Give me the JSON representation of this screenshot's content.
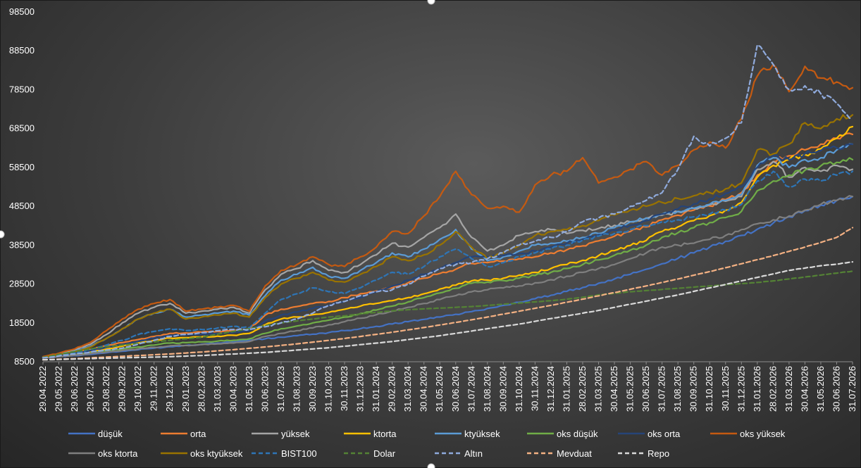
{
  "chart_data": {
    "type": "line",
    "title": "",
    "xlabel": "",
    "ylabel": "",
    "ylim": [
      8500,
      98500
    ],
    "y_ticks": [
      "8500",
      "18500",
      "28500",
      "38500",
      "48500",
      "58500",
      "68500",
      "78500",
      "88500",
      "98500"
    ],
    "x_ticks": [
      "29.04.2022",
      "29.05.2022",
      "29.06.2022",
      "29.07.2022",
      "29.08.2022",
      "29.09.2022",
      "29.10.2022",
      "29.11.2022",
      "29.12.2022",
      "29.01.2023",
      "28.02.2023",
      "31.03.2023",
      "30.04.2023",
      "31.05.2023",
      "30.06.2023",
      "31.07.2023",
      "31.08.2023",
      "30.09.2023",
      "31.10.2023",
      "30.11.2023",
      "31.12.2023",
      "31.01.2024",
      "29.02.2024",
      "31.03.2024",
      "30.04.2024",
      "31.05.2024",
      "30.06.2024",
      "31.07.2024",
      "31.08.2024",
      "30.09.2024",
      "31.10.2024",
      "30.11.2024",
      "31.12.2024",
      "31.01.2025",
      "28.02.2025",
      "31.03.2025",
      "30.04.2025",
      "31.05.2025",
      "30.06.2025",
      "31.07.2025",
      "31.08.2025",
      "30.09.2025",
      "31.10.2025",
      "30.11.2025",
      "31.12.2025",
      "31.01.2026",
      "28.02.2026",
      "31.03.2026",
      "30.04.2026",
      "31.05.2026",
      "30.06.2026",
      "31.07.2026"
    ],
    "grid": false,
    "legend_position": "bottom",
    "series": [
      {
        "name": "düşük",
        "color": "#4472c4",
        "dash": false,
        "values": [
          9500,
          9800,
          10100,
          10400,
          10800,
          11200,
          11600,
          12000,
          12400,
          12700,
          13000,
          13300,
          13600,
          14000,
          14400,
          14800,
          15200,
          15600,
          16000,
          16500,
          17000,
          17600,
          18200,
          18800,
          19400,
          20000,
          20700,
          21400,
          22200,
          23000,
          23800,
          24700,
          25600,
          26600,
          27600,
          28700,
          29800,
          31000,
          32300,
          33700,
          35100,
          36500,
          38000,
          39500,
          41000,
          42600,
          44200,
          45800,
          47400,
          48800,
          50000,
          51000
        ]
      },
      {
        "name": "orta",
        "color": "#ed7d31",
        "dash": false,
        "values": [
          9600,
          10200,
          10900,
          11700,
          12600,
          13400,
          14200,
          15000,
          15800,
          15900,
          16100,
          16300,
          16500,
          17000,
          20500,
          22000,
          22700,
          23500,
          24000,
          25000,
          26000,
          26700,
          27500,
          28800,
          30000,
          31200,
          32300,
          33800,
          34000,
          34400,
          35000,
          35500,
          36500,
          37300,
          38300,
          39600,
          40800,
          42000,
          43200,
          45000,
          46200,
          47500,
          48600,
          50200,
          52000,
          56500,
          60000,
          61500,
          63000,
          64500,
          66000,
          67000
        ]
      },
      {
        "name": "yüksek",
        "color": "#a5a5a5",
        "dash": false,
        "values": [
          9700,
          10500,
          11500,
          13000,
          15500,
          18500,
          21000,
          22500,
          23500,
          21000,
          21500,
          22000,
          22500,
          21000,
          27000,
          31000,
          32500,
          34500,
          32000,
          31500,
          33500,
          36000,
          39000,
          38000,
          40500,
          43000,
          46500,
          40500,
          37000,
          38500,
          41000,
          42000,
          42500,
          41500,
          42300,
          42800,
          43600,
          44500,
          45400,
          46200,
          47100,
          48000,
          48900,
          49800,
          51000,
          58000,
          60000,
          56000,
          58500,
          57500,
          59000,
          58000
        ]
      },
      {
        "name": "ktorta",
        "color": "#ffc000",
        "dash": false,
        "values": [
          9500,
          9900,
          10400,
          11000,
          11800,
          12500,
          13300,
          14000,
          14600,
          14700,
          14900,
          15100,
          15300,
          15800,
          18000,
          19500,
          20000,
          20600,
          21200,
          22000,
          22800,
          23500,
          24200,
          25000,
          26000,
          27200,
          28200,
          29300,
          29500,
          30000,
          30800,
          31500,
          32500,
          33500,
          34600,
          35800,
          37100,
          38400,
          39700,
          42000,
          43200,
          44800,
          46100,
          47500,
          49500,
          56000,
          59000,
          60500,
          61800,
          63300,
          66000,
          69000
        ]
      },
      {
        "name": "ktyüksek",
        "color": "#5b9bd5",
        "dash": false,
        "values": [
          9700,
          10400,
          11200,
          12500,
          14500,
          17000,
          19500,
          21000,
          22000,
          20000,
          20500,
          21000,
          21500,
          20500,
          25500,
          29500,
          31000,
          32800,
          30500,
          30000,
          32000,
          34000,
          36500,
          35500,
          37500,
          40000,
          42500,
          37500,
          34500,
          35500,
          37000,
          38500,
          39000,
          39500,
          40500,
          41500,
          43000,
          44500,
          45500,
          46500,
          47200,
          48000,
          49000,
          50000,
          51500,
          59000,
          61000,
          58500,
          60500,
          61000,
          63000,
          64500
        ]
      },
      {
        "name": "oks düşük",
        "color": "#70ad47",
        "dash": false,
        "values": [
          9500,
          9900,
          10300,
          10800,
          11300,
          11800,
          12300,
          12800,
          13300,
          13400,
          13600,
          13800,
          14000,
          14400,
          15800,
          17000,
          17700,
          18500,
          19200,
          20000,
          20900,
          21800,
          22800,
          23900,
          25000,
          26200,
          27400,
          28700,
          29000,
          29400,
          30000,
          30700,
          31500,
          32500,
          33500,
          34700,
          35900,
          37200,
          38500,
          40500,
          41700,
          43000,
          44300,
          45600,
          47200,
          52500,
          55000,
          56500,
          57800,
          58900,
          59800,
          60500
        ]
      },
      {
        "name": "oks orta",
        "color": "#264478",
        "dash": false,
        "values": [
          9600,
          10100,
          10700,
          11400,
          12200,
          13000,
          13800,
          14600,
          15300,
          15400,
          15600,
          15800,
          16000,
          16500,
          19000,
          20500,
          21300,
          22200,
          23000,
          24000,
          25000,
          26500,
          28000,
          29500,
          31000,
          32500,
          34000,
          35500,
          35500,
          35800,
          36300,
          37000,
          38000,
          39000,
          40000,
          41200,
          42400,
          43600,
          44800,
          46500,
          47800,
          49100,
          50400,
          51800,
          53500,
          58500,
          61500,
          60500,
          62000,
          62800,
          63500,
          64500
        ]
      },
      {
        "name": "oks yüksek",
        "color": "#c55a11",
        "dash": false,
        "values": [
          9800,
          10700,
          11800,
          13500,
          16500,
          19500,
          22000,
          23500,
          24500,
          21500,
          22000,
          22500,
          23000,
          21500,
          28000,
          32000,
          33500,
          35500,
          33500,
          33000,
          35500,
          38000,
          42000,
          41500,
          46000,
          51000,
          57500,
          51500,
          48000,
          48500,
          47000,
          54000,
          56500,
          57500,
          61000,
          54500,
          56000,
          58000,
          60000,
          56500,
          59000,
          63000,
          65000,
          63500,
          71000,
          82000,
          85000,
          78000,
          84500,
          81500,
          80500,
          79000
        ]
      },
      {
        "name": "oks ktorta",
        "color": "#7f7f7f",
        "dash": false,
        "values": [
          9500,
          9800,
          10200,
          10600,
          11000,
          11400,
          11800,
          12200,
          12600,
          12700,
          12900,
          13100,
          13300,
          13700,
          15000,
          15800,
          16500,
          17200,
          18000,
          18800,
          19700,
          20600,
          21500,
          22500,
          23500,
          24500,
          25500,
          26500,
          27000,
          27500,
          28000,
          28800,
          29600,
          30500,
          31500,
          32500,
          33500,
          35000,
          36500,
          38000,
          38500,
          39000,
          40000,
          41000,
          42500,
          44000,
          45000,
          46000,
          47500,
          49000,
          50000,
          51000
        ]
      },
      {
        "name": "oks ktyüksek",
        "color": "#997300",
        "dash": false,
        "values": [
          9700,
          10300,
          11100,
          12300,
          14500,
          17000,
          19500,
          21000,
          22000,
          19500,
          20000,
          20500,
          21000,
          20000,
          25000,
          28500,
          30000,
          31500,
          29500,
          29000,
          31000,
          33000,
          35500,
          34500,
          36000,
          38500,
          42000,
          38000,
          35000,
          36500,
          38500,
          41000,
          42000,
          42500,
          43500,
          44800,
          46300,
          47500,
          48500,
          49500,
          50500,
          51200,
          52000,
          53000,
          54500,
          63000,
          62000,
          64500,
          70000,
          68500,
          71000,
          72000
        ]
      },
      {
        "name": "BIST100",
        "color": "#2e75b6",
        "dash": true,
        "values": [
          9600,
          10100,
          10800,
          11700,
          12800,
          14000,
          15500,
          16300,
          17000,
          16500,
          16800,
          17200,
          17600,
          17200,
          21000,
          24500,
          26000,
          27500,
          26500,
          26000,
          27500,
          29500,
          31500,
          31000,
          33000,
          35500,
          37500,
          35000,
          33000,
          34000,
          35500,
          36500,
          37500,
          38500,
          39800,
          40800,
          41500,
          42500,
          43500,
          44500,
          45000,
          45800,
          46500,
          47500,
          49000,
          55000,
          57500,
          53500,
          55500,
          55000,
          56500,
          57500
        ]
      },
      {
        "name": "Dolar",
        "color": "#548235",
        "dash": true,
        "values": [
          9600,
          10400,
          11100,
          11800,
          12400,
          12800,
          13200,
          13600,
          14000,
          14400,
          14800,
          15600,
          16300,
          17000,
          17800,
          18500,
          19000,
          19500,
          20000,
          20300,
          20800,
          21200,
          21600,
          21900,
          22100,
          22300,
          22500,
          22700,
          23000,
          23300,
          23600,
          23900,
          24200,
          24600,
          25100,
          25700,
          26100,
          26500,
          26800,
          27100,
          27400,
          27700,
          28000,
          28300,
          28600,
          28900,
          29300,
          29800,
          30300,
          30800,
          31300,
          31800
        ]
      },
      {
        "name": "Altın",
        "color": "#8faadc",
        "dash": true,
        "values": [
          9500,
          10000,
          10500,
          11000,
          11500,
          12000,
          13000,
          14000,
          15000,
          15500,
          16000,
          16500,
          16800,
          16800,
          17500,
          18500,
          19500,
          21000,
          23000,
          24000,
          25500,
          26500,
          27000,
          28500,
          30500,
          32500,
          33500,
          34000,
          35000,
          36500,
          38500,
          39500,
          40500,
          42000,
          44500,
          45500,
          46500,
          48500,
          50000,
          52000,
          58000,
          66500,
          64000,
          66000,
          70000,
          90000,
          85000,
          78500,
          79500,
          77500,
          75000,
          71000
        ]
      },
      {
        "name": "Mevduat",
        "color": "#f4b183",
        "dash": true,
        "values": [
          9000,
          9150,
          9300,
          9500,
          9700,
          9900,
          10100,
          10300,
          10500,
          10750,
          11000,
          11300,
          11600,
          11950,
          12300,
          12700,
          13100,
          13550,
          14000,
          14500,
          15000,
          15550,
          16100,
          16700,
          17300,
          17950,
          18600,
          19300,
          20000,
          20750,
          21500,
          22250,
          23000,
          23800,
          24600,
          25450,
          26300,
          27150,
          28000,
          28900,
          29800,
          30750,
          31700,
          32700,
          33700,
          34750,
          35800,
          36900,
          38000,
          39200,
          40500,
          43000
        ]
      },
      {
        "name": "Repo",
        "color": "#d9d9d9",
        "dash": true,
        "values": [
          9000,
          9100,
          9200,
          9300,
          9400,
          9500,
          9600,
          9700,
          9800,
          9950,
          10100,
          10300,
          10500,
          10700,
          10900,
          11200,
          11500,
          11800,
          12100,
          12500,
          12900,
          13300,
          13700,
          14200,
          14700,
          15200,
          15800,
          16400,
          17000,
          17600,
          18200,
          18900,
          19600,
          20300,
          21000,
          21700,
          22500,
          23300,
          24100,
          24900,
          25700,
          26600,
          27500,
          28400,
          29300,
          30200,
          31100,
          32000,
          32600,
          33200,
          33600,
          34200
        ]
      }
    ]
  }
}
